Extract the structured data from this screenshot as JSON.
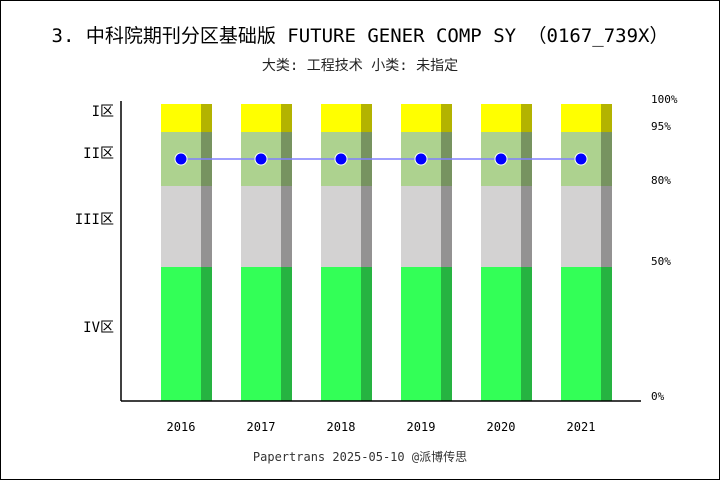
{
  "chart_data": {
    "type": "bar",
    "title": "3. 中科院期刊分区基础版 FUTURE GENER COMP SY （0167_739X）",
    "subtitle": "大类: 工程技术 小类: 未指定",
    "categories": [
      "2016",
      "2017",
      "2018",
      "2019",
      "2020",
      "2021"
    ],
    "zones": [
      {
        "label": "IV区",
        "from": 0,
        "to": 50,
        "color": "#33ff57"
      },
      {
        "label": "III区",
        "from": 50,
        "to": 80,
        "color": "#d3d2d2"
      },
      {
        "label": "II区",
        "from": 80,
        "to": 95,
        "color": "#add28f"
      },
      {
        "label": "I区",
        "from": 95,
        "to": 100,
        "color": "#ffff00"
      }
    ],
    "percent_ticks": [
      "0%",
      "50%",
      "80%",
      "95%",
      "100%"
    ],
    "series": [
      {
        "values": [
          "II区",
          "II区",
          "II区",
          "II区",
          "II区",
          "II区"
        ],
        "color": "#0000ff"
      }
    ],
    "footer": "Papertrans   2025-05-10   @派博传思"
  }
}
